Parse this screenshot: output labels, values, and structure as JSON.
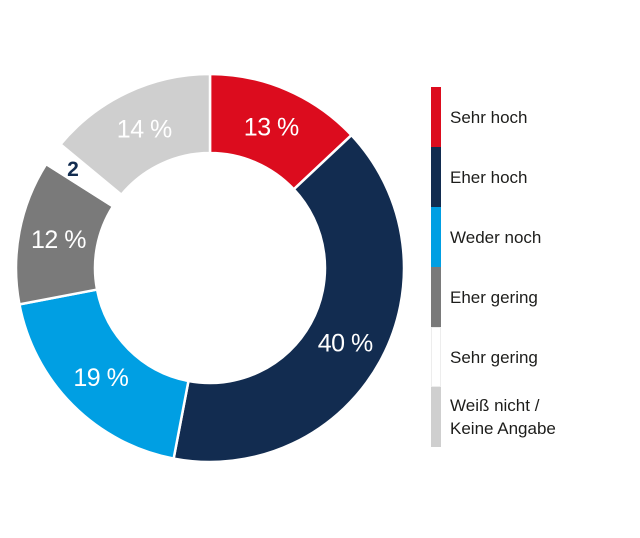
{
  "chart_data": {
    "type": "pie",
    "subtype": "donut",
    "title": "",
    "direction": "clockwise",
    "start_angle_deg": 0,
    "total": 100,
    "legend_position": "right",
    "background": "#ffffff",
    "separator_color": "#ffffff",
    "categories": [
      "Sehr hoch",
      "Eher hoch",
      "Weder noch",
      "Eher gering",
      "Sehr gering",
      "Weiß nicht / Keine Angabe"
    ],
    "values": [
      13,
      40,
      19,
      12,
      2,
      14
    ],
    "slices": [
      {
        "label": "Sehr hoch",
        "value": 13,
        "display": "13 %",
        "color": "#dc0c1e",
        "label_color": "#ffffff",
        "label_r": 0.795
      },
      {
        "label": "Eher hoch",
        "value": 40,
        "display": "40 %",
        "color": "#122c50",
        "label_color": "#ffffff",
        "label_r": 0.795
      },
      {
        "label": "Weder noch",
        "value": 19,
        "display": "19 %",
        "color": "#009fe3",
        "label_color": "#ffffff",
        "label_r": 0.795
      },
      {
        "label": "Eher gering",
        "value": 12,
        "display": "12 %",
        "color": "#7a7a7a",
        "label_color": "#ffffff",
        "label_r": 0.795
      },
      {
        "label": "Sehr gering",
        "value": 2,
        "display": "2",
        "color": "#ffffff",
        "label_color": "#122c50",
        "label_r": 0.875
      },
      {
        "label": "Weiß nicht / Keine Angabe",
        "value": 14,
        "display": "14 %",
        "color": "#cfcfcf",
        "label_color": "#ffffff",
        "label_r": 0.795
      }
    ]
  },
  "legend": {
    "text_color": "#1d1d1b",
    "items": [
      {
        "lines": [
          "Sehr hoch"
        ],
        "color": "#dc0c1e",
        "bordered": false
      },
      {
        "lines": [
          "Eher hoch"
        ],
        "color": "#122c50",
        "bordered": false
      },
      {
        "lines": [
          "Weder noch"
        ],
        "color": "#009fe3",
        "bordered": false
      },
      {
        "lines": [
          "Eher gering"
        ],
        "color": "#7a7a7a",
        "bordered": false
      },
      {
        "lines": [
          "Sehr gering"
        ],
        "color": "#ffffff",
        "bordered": true
      },
      {
        "lines": [
          "Weiß nicht /",
          "Keine Angabe"
        ],
        "color": "#cfcfcf",
        "bordered": false
      }
    ]
  }
}
